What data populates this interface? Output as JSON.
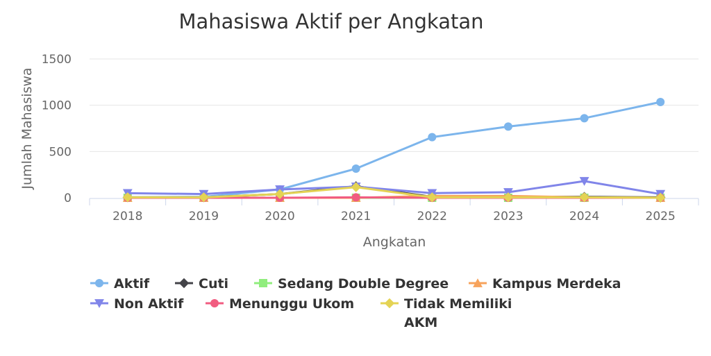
{
  "chart_data": {
    "type": "line",
    "title": "Mahasiswa Aktif per Angkatan",
    "xlabel": "Angkatan",
    "ylabel": "Jumlah Mahasiswa",
    "categories": [
      "2018",
      "2019",
      "2020",
      "2021",
      "2022",
      "2023",
      "2024",
      "2025"
    ],
    "ylim": [
      0,
      1500
    ],
    "yticks": [
      "0",
      "500",
      "1000",
      "1500"
    ],
    "grid": true,
    "legend_position": "bottom",
    "series": [
      {
        "name": "Aktif",
        "color": "#7cb5ec",
        "marker": "circle",
        "values": [
          5,
          10,
          90,
          315,
          655,
          770,
          860,
          1035
        ]
      },
      {
        "name": "Cuti",
        "color": "#434348",
        "marker": "diamond",
        "values": [
          5,
          5,
          40,
          125,
          10,
          10,
          10,
          5
        ]
      },
      {
        "name": "Sedang Double Degree",
        "color": "#90ed7d",
        "marker": "square",
        "values": [
          0,
          0,
          0,
          0,
          0,
          0,
          0,
          0
        ]
      },
      {
        "name": "Kampus Merdeka",
        "color": "#f7a35c",
        "marker": "triangle",
        "values": [
          0,
          0,
          0,
          0,
          20,
          20,
          5,
          0
        ]
      },
      {
        "name": "Non Aktif",
        "color": "#8085e9",
        "marker": "triangle-down",
        "values": [
          50,
          40,
          90,
          120,
          50,
          60,
          180,
          40
        ]
      },
      {
        "name": "Menunggu Ukom",
        "color": "#f15c80",
        "marker": "circle",
        "values": [
          0,
          0,
          0,
          5,
          0,
          0,
          0,
          0
        ]
      },
      {
        "name": "Tidak Memiliki AKM",
        "color": "#e4d354",
        "marker": "diamond",
        "values": [
          5,
          5,
          40,
          115,
          5,
          5,
          5,
          0
        ]
      }
    ]
  }
}
